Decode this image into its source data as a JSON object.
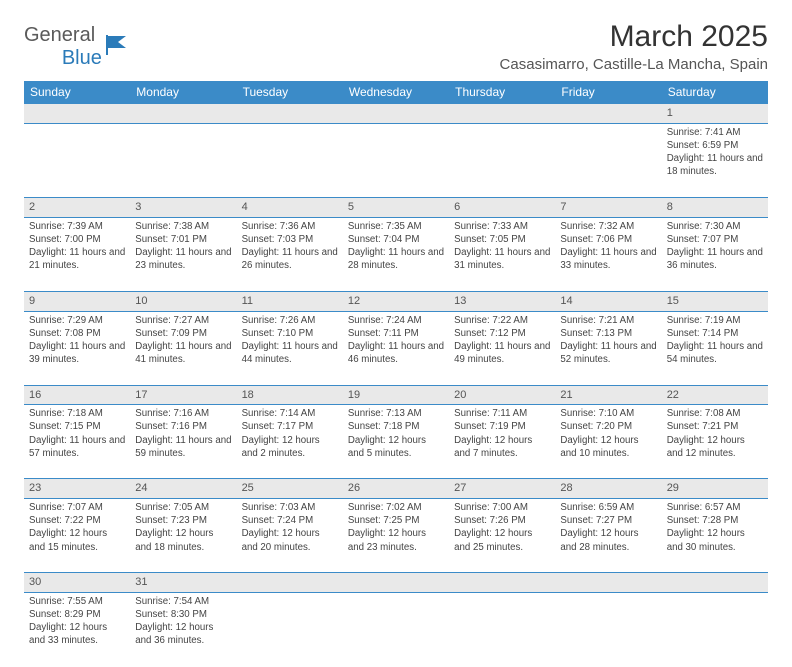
{
  "logo": {
    "general": "General",
    "blue": "Blue"
  },
  "title": "March 2025",
  "subtitle": "Casasimarro, Castille-La Mancha, Spain",
  "weekdays": [
    "Sunday",
    "Monday",
    "Tuesday",
    "Wednesday",
    "Thursday",
    "Friday",
    "Saturday"
  ],
  "colors": {
    "header_bg": "#3b8bc8",
    "header_text": "#ffffff",
    "daynum_bg": "#e9e9e9",
    "border": "#3b8bc8",
    "logo_blue": "#2b7bb9",
    "text": "#333333"
  },
  "weeks": [
    [
      null,
      null,
      null,
      null,
      null,
      null,
      {
        "n": "1",
        "sr": "Sunrise: 7:41 AM",
        "ss": "Sunset: 6:59 PM",
        "dl": "Daylight: 11 hours and 18 minutes."
      }
    ],
    [
      {
        "n": "2",
        "sr": "Sunrise: 7:39 AM",
        "ss": "Sunset: 7:00 PM",
        "dl": "Daylight: 11 hours and 21 minutes."
      },
      {
        "n": "3",
        "sr": "Sunrise: 7:38 AM",
        "ss": "Sunset: 7:01 PM",
        "dl": "Daylight: 11 hours and 23 minutes."
      },
      {
        "n": "4",
        "sr": "Sunrise: 7:36 AM",
        "ss": "Sunset: 7:03 PM",
        "dl": "Daylight: 11 hours and 26 minutes."
      },
      {
        "n": "5",
        "sr": "Sunrise: 7:35 AM",
        "ss": "Sunset: 7:04 PM",
        "dl": "Daylight: 11 hours and 28 minutes."
      },
      {
        "n": "6",
        "sr": "Sunrise: 7:33 AM",
        "ss": "Sunset: 7:05 PM",
        "dl": "Daylight: 11 hours and 31 minutes."
      },
      {
        "n": "7",
        "sr": "Sunrise: 7:32 AM",
        "ss": "Sunset: 7:06 PM",
        "dl": "Daylight: 11 hours and 33 minutes."
      },
      {
        "n": "8",
        "sr": "Sunrise: 7:30 AM",
        "ss": "Sunset: 7:07 PM",
        "dl": "Daylight: 11 hours and 36 minutes."
      }
    ],
    [
      {
        "n": "9",
        "sr": "Sunrise: 7:29 AM",
        "ss": "Sunset: 7:08 PM",
        "dl": "Daylight: 11 hours and 39 minutes."
      },
      {
        "n": "10",
        "sr": "Sunrise: 7:27 AM",
        "ss": "Sunset: 7:09 PM",
        "dl": "Daylight: 11 hours and 41 minutes."
      },
      {
        "n": "11",
        "sr": "Sunrise: 7:26 AM",
        "ss": "Sunset: 7:10 PM",
        "dl": "Daylight: 11 hours and 44 minutes."
      },
      {
        "n": "12",
        "sr": "Sunrise: 7:24 AM",
        "ss": "Sunset: 7:11 PM",
        "dl": "Daylight: 11 hours and 46 minutes."
      },
      {
        "n": "13",
        "sr": "Sunrise: 7:22 AM",
        "ss": "Sunset: 7:12 PM",
        "dl": "Daylight: 11 hours and 49 minutes."
      },
      {
        "n": "14",
        "sr": "Sunrise: 7:21 AM",
        "ss": "Sunset: 7:13 PM",
        "dl": "Daylight: 11 hours and 52 minutes."
      },
      {
        "n": "15",
        "sr": "Sunrise: 7:19 AM",
        "ss": "Sunset: 7:14 PM",
        "dl": "Daylight: 11 hours and 54 minutes."
      }
    ],
    [
      {
        "n": "16",
        "sr": "Sunrise: 7:18 AM",
        "ss": "Sunset: 7:15 PM",
        "dl": "Daylight: 11 hours and 57 minutes."
      },
      {
        "n": "17",
        "sr": "Sunrise: 7:16 AM",
        "ss": "Sunset: 7:16 PM",
        "dl": "Daylight: 11 hours and 59 minutes."
      },
      {
        "n": "18",
        "sr": "Sunrise: 7:14 AM",
        "ss": "Sunset: 7:17 PM",
        "dl": "Daylight: 12 hours and 2 minutes."
      },
      {
        "n": "19",
        "sr": "Sunrise: 7:13 AM",
        "ss": "Sunset: 7:18 PM",
        "dl": "Daylight: 12 hours and 5 minutes."
      },
      {
        "n": "20",
        "sr": "Sunrise: 7:11 AM",
        "ss": "Sunset: 7:19 PM",
        "dl": "Daylight: 12 hours and 7 minutes."
      },
      {
        "n": "21",
        "sr": "Sunrise: 7:10 AM",
        "ss": "Sunset: 7:20 PM",
        "dl": "Daylight: 12 hours and 10 minutes."
      },
      {
        "n": "22",
        "sr": "Sunrise: 7:08 AM",
        "ss": "Sunset: 7:21 PM",
        "dl": "Daylight: 12 hours and 12 minutes."
      }
    ],
    [
      {
        "n": "23",
        "sr": "Sunrise: 7:07 AM",
        "ss": "Sunset: 7:22 PM",
        "dl": "Daylight: 12 hours and 15 minutes."
      },
      {
        "n": "24",
        "sr": "Sunrise: 7:05 AM",
        "ss": "Sunset: 7:23 PM",
        "dl": "Daylight: 12 hours and 18 minutes."
      },
      {
        "n": "25",
        "sr": "Sunrise: 7:03 AM",
        "ss": "Sunset: 7:24 PM",
        "dl": "Daylight: 12 hours and 20 minutes."
      },
      {
        "n": "26",
        "sr": "Sunrise: 7:02 AM",
        "ss": "Sunset: 7:25 PM",
        "dl": "Daylight: 12 hours and 23 minutes."
      },
      {
        "n": "27",
        "sr": "Sunrise: 7:00 AM",
        "ss": "Sunset: 7:26 PM",
        "dl": "Daylight: 12 hours and 25 minutes."
      },
      {
        "n": "28",
        "sr": "Sunrise: 6:59 AM",
        "ss": "Sunset: 7:27 PM",
        "dl": "Daylight: 12 hours and 28 minutes."
      },
      {
        "n": "29",
        "sr": "Sunrise: 6:57 AM",
        "ss": "Sunset: 7:28 PM",
        "dl": "Daylight: 12 hours and 30 minutes."
      }
    ],
    [
      {
        "n": "30",
        "sr": "Sunrise: 7:55 AM",
        "ss": "Sunset: 8:29 PM",
        "dl": "Daylight: 12 hours and 33 minutes."
      },
      {
        "n": "31",
        "sr": "Sunrise: 7:54 AM",
        "ss": "Sunset: 8:30 PM",
        "dl": "Daylight: 12 hours and 36 minutes."
      },
      null,
      null,
      null,
      null,
      null
    ]
  ]
}
